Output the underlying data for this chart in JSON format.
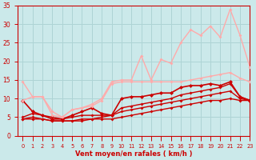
{
  "title": "",
  "xlabel": "Vent moyen/en rafales ( km/h )",
  "ylabel": "",
  "bg_color": "#cbe9ea",
  "grid_color": "#aed4d5",
  "xlim": [
    -0.5,
    23
  ],
  "ylim": [
    0,
    35
  ],
  "yticks": [
    0,
    5,
    10,
    15,
    20,
    25,
    30,
    35
  ],
  "xticks": [
    0,
    1,
    2,
    3,
    4,
    5,
    6,
    7,
    8,
    9,
    10,
    11,
    12,
    13,
    14,
    15,
    16,
    17,
    18,
    19,
    20,
    21,
    22,
    23
  ],
  "series": [
    {
      "x": [
        0,
        1,
        2,
        3,
        4,
        5,
        6,
        7,
        8,
        9,
        10,
        11,
        12,
        13,
        14,
        15,
        16,
        17,
        18,
        19,
        20,
        21,
        22,
        23
      ],
      "y": [
        4.5,
        4.5,
        4.5,
        4.0,
        4.0,
        4.0,
        4.0,
        4.5,
        4.5,
        4.5,
        5.0,
        5.5,
        6.0,
        6.5,
        7.0,
        7.5,
        8.0,
        8.5,
        9.0,
        9.5,
        9.5,
        10.0,
        9.5,
        9.5
      ],
      "color": "#cc0000",
      "lw": 1.0,
      "marker": "D",
      "ms": 2.0
    },
    {
      "x": [
        0,
        1,
        2,
        3,
        4,
        5,
        6,
        7,
        8,
        9,
        10,
        11,
        12,
        13,
        14,
        15,
        16,
        17,
        18,
        19,
        20,
        21,
        22,
        23
      ],
      "y": [
        4.5,
        5.0,
        4.5,
        4.0,
        4.0,
        4.0,
        4.5,
        4.5,
        5.0,
        5.5,
        6.5,
        7.0,
        7.5,
        8.0,
        8.5,
        9.0,
        9.5,
        10.0,
        10.5,
        11.0,
        11.5,
        12.0,
        10.0,
        9.5
      ],
      "color": "#cc0000",
      "lw": 1.0,
      "marker": "D",
      "ms": 2.0
    },
    {
      "x": [
        0,
        1,
        2,
        3,
        4,
        5,
        6,
        7,
        8,
        9,
        10,
        11,
        12,
        13,
        14,
        15,
        16,
        17,
        18,
        19,
        20,
        21,
        22,
        23
      ],
      "y": [
        5.0,
        6.0,
        5.5,
        5.0,
        4.5,
        5.0,
        5.5,
        5.5,
        5.5,
        5.5,
        7.5,
        8.0,
        8.5,
        9.0,
        9.5,
        10.0,
        11.0,
        11.5,
        12.0,
        12.5,
        13.0,
        14.0,
        10.5,
        9.5
      ],
      "color": "#cc0000",
      "lw": 1.0,
      "marker": "D",
      "ms": 2.0
    },
    {
      "x": [
        0,
        1,
        2,
        3,
        4,
        5,
        6,
        7,
        8,
        9,
        10,
        11,
        12,
        13,
        14,
        15,
        16,
        17,
        18,
        19,
        20,
        21,
        22,
        23
      ],
      "y": [
        9.5,
        6.5,
        5.5,
        4.5,
        4.5,
        5.5,
        6.5,
        7.5,
        6.0,
        5.5,
        10.0,
        10.5,
        10.5,
        11.0,
        11.5,
        11.5,
        13.0,
        13.5,
        13.5,
        14.0,
        13.5,
        14.5,
        10.5,
        9.5
      ],
      "color": "#cc0000",
      "lw": 1.2,
      "marker": "D",
      "ms": 2.5
    },
    {
      "x": [
        0,
        1,
        2,
        3,
        4,
        5,
        6,
        7,
        8,
        9,
        10,
        11,
        12,
        13,
        14,
        15,
        16,
        17,
        18,
        19,
        20,
        21,
        22,
        23
      ],
      "y": [
        9.5,
        10.5,
        10.5,
        5.5,
        5.0,
        7.0,
        7.5,
        8.5,
        10.0,
        14.5,
        15.0,
        15.0,
        21.5,
        15.0,
        20.5,
        19.5,
        25.0,
        28.5,
        27.0,
        29.5,
        26.5,
        34.0,
        27.0,
        18.5
      ],
      "color": "#ffaaaa",
      "lw": 1.0,
      "marker": "D",
      "ms": 2.0
    },
    {
      "x": [
        0,
        1,
        2,
        3,
        4,
        5,
        6,
        7,
        8,
        9,
        10,
        11,
        12,
        13,
        14,
        15,
        16,
        17,
        18,
        19,
        20,
        21,
        22,
        23
      ],
      "y": [
        14.5,
        10.5,
        10.5,
        6.5,
        5.0,
        7.0,
        7.5,
        8.0,
        9.5,
        14.0,
        14.5,
        14.5,
        14.5,
        14.5,
        14.5,
        14.5,
        14.5,
        15.0,
        15.5,
        16.0,
        16.5,
        17.0,
        15.5,
        14.5
      ],
      "color": "#ffaaaa",
      "lw": 1.0,
      "marker": "D",
      "ms": 2.0
    }
  ],
  "tick_color": "#cc0000",
  "label_color": "#cc0000",
  "axis_color": "#cc0000"
}
